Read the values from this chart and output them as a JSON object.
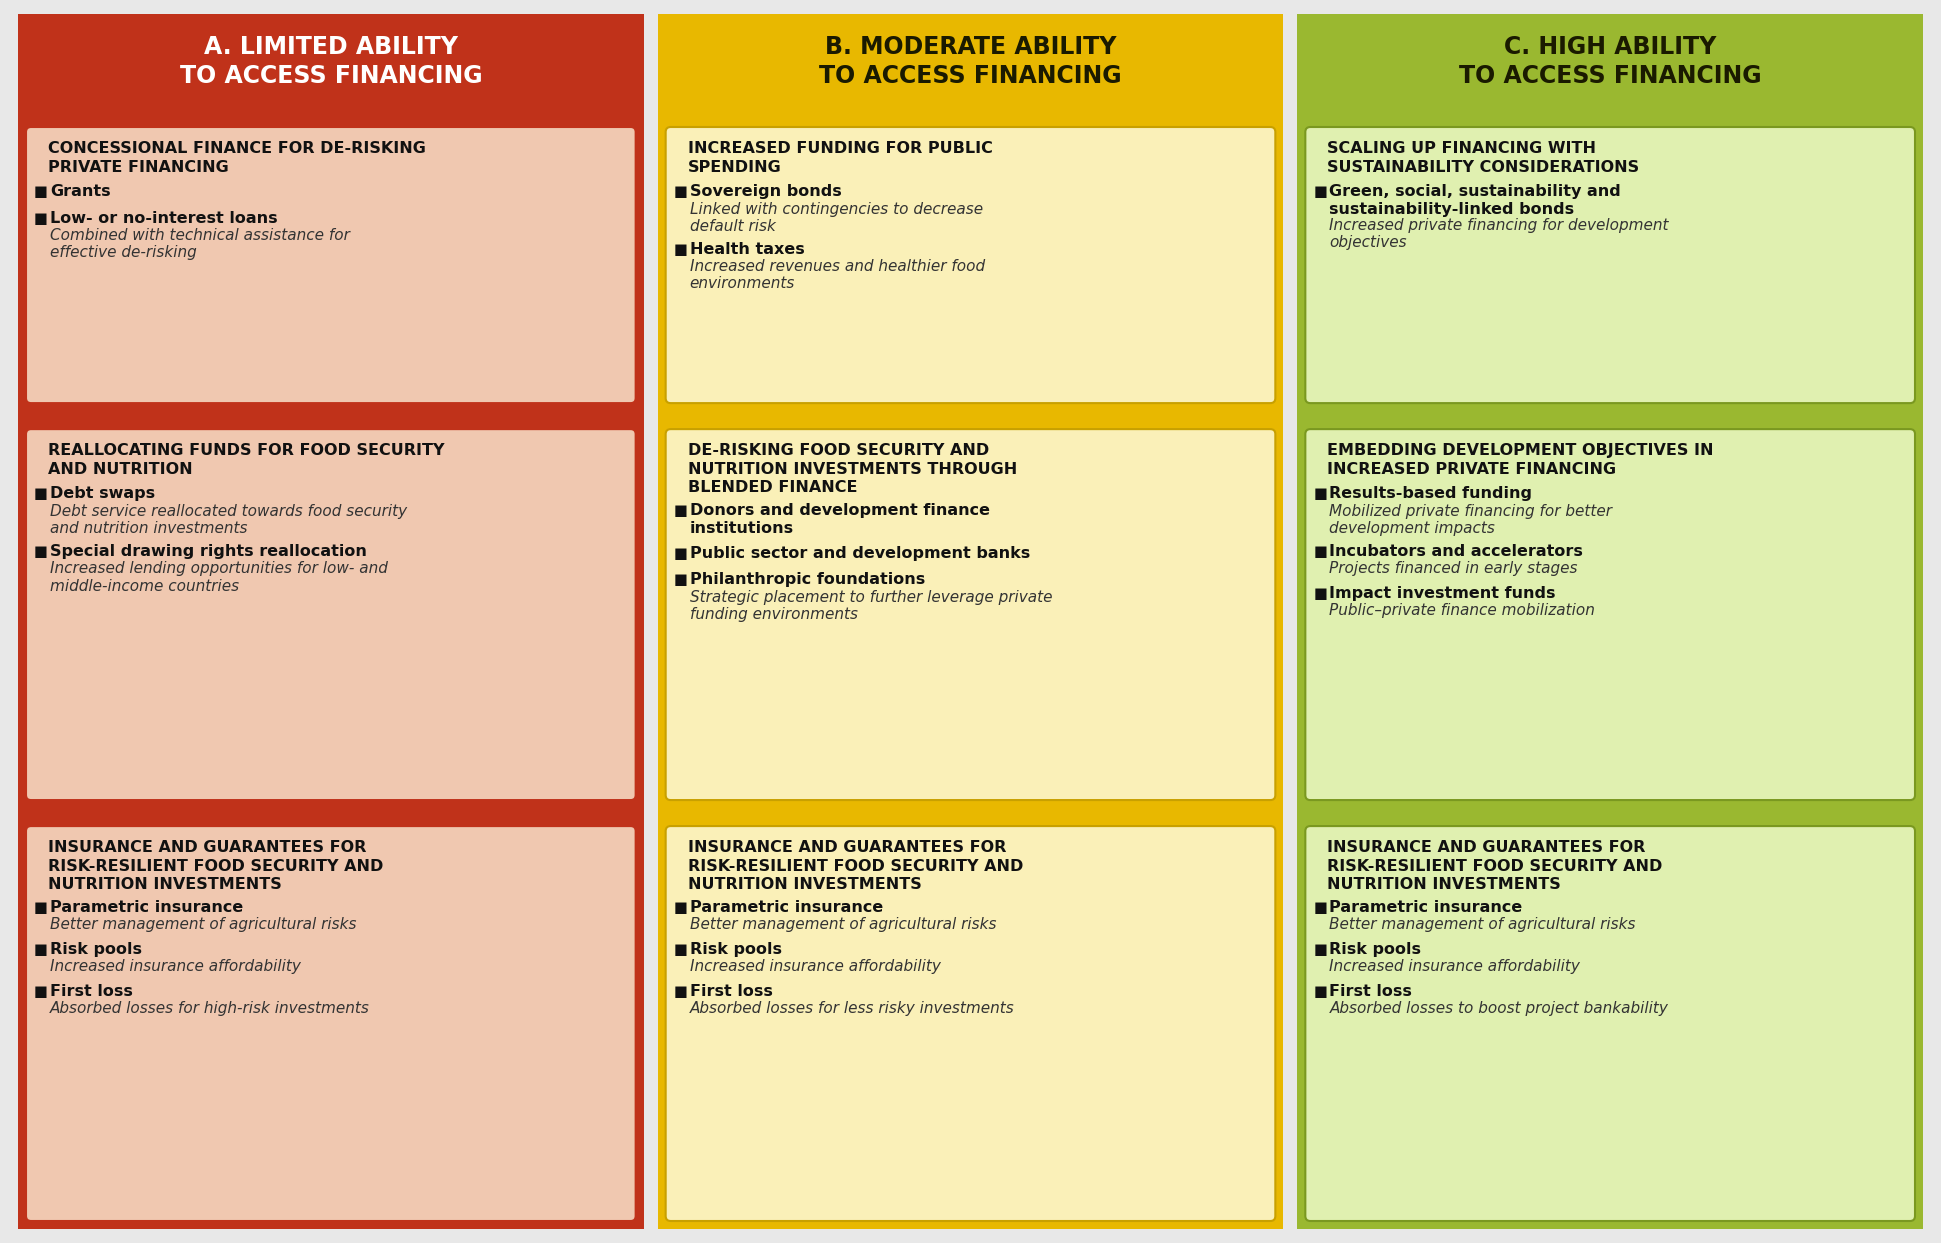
{
  "bg_color": "#e8e8e8",
  "columns": [
    {
      "header_text": "A. LIMITED ABILITY\nTO ACCESS FINANCING",
      "header_bg": "#c0321a",
      "header_text_color": "#ffffff",
      "col_bg": "#c0321a",
      "box_bg": "#f0c8b0",
      "box_border": "#c0321a",
      "cells": [
        {
          "title": "CONCESSIONAL FINANCE FOR DE-RISKING\nPRIVATE FINANCING",
          "items": [
            {
              "bold": "Grants",
              "italic": ""
            },
            {
              "bold": "Low- or no-interest loans",
              "italic": "Combined with technical assistance for\neffective de-risking"
            }
          ]
        },
        {
          "title": "REALLOCATING FUNDS FOR FOOD SECURITY\nAND NUTRITION",
          "items": [
            {
              "bold": "Debt swaps",
              "italic": "Debt service reallocated towards food security\nand nutrition investments"
            },
            {
              "bold": "Special drawing rights reallocation",
              "italic": "Increased lending opportunities for low- and\nmiddle-income countries"
            }
          ]
        },
        {
          "title": "INSURANCE AND GUARANTEES FOR\nRISK-RESILIENT FOOD SECURITY AND\nNUTRITION INVESTMENTS",
          "items": [
            {
              "bold": "Parametric insurance",
              "italic": "Better management of agricultural risks"
            },
            {
              "bold": "Risk pools",
              "italic": "Increased insurance affordability"
            },
            {
              "bold": "First loss",
              "italic": "Absorbed losses for high-risk investments"
            }
          ]
        }
      ]
    },
    {
      "header_text": "B. MODERATE ABILITY\nTO ACCESS FINANCING",
      "header_bg": "#e8b800",
      "header_text_color": "#1a1a00",
      "col_bg": "#e8b800",
      "box_bg": "#faf0b8",
      "box_border": "#c8a000",
      "cells": [
        {
          "title": "INCREASED FUNDING FOR PUBLIC\nSPENDING",
          "items": [
            {
              "bold": "Sovereign bonds",
              "italic": "Linked with contingencies to decrease\ndefault risk"
            },
            {
              "bold": "Health taxes",
              "italic": "Increased revenues and healthier food\nenvironments"
            }
          ]
        },
        {
          "title": "DE-RISKING FOOD SECURITY AND\nNUTRITION INVESTMENTS THROUGH\nBLENDED FINANCE",
          "items": [
            {
              "bold": "Donors and development finance\ninstitutions",
              "italic": ""
            },
            {
              "bold": "Public sector and development banks",
              "italic": ""
            },
            {
              "bold": "Philanthropic foundations",
              "italic": "Strategic placement to further leverage private\nfunding environments"
            }
          ]
        },
        {
          "title": "INSURANCE AND GUARANTEES FOR\nRISK-RESILIENT FOOD SECURITY AND\nNUTRITION INVESTMENTS",
          "items": [
            {
              "bold": "Parametric insurance",
              "italic": "Better management of agricultural risks"
            },
            {
              "bold": "Risk pools",
              "italic": "Increased insurance affordability"
            },
            {
              "bold": "First loss",
              "italic": "Absorbed losses for less risky investments"
            }
          ]
        }
      ]
    },
    {
      "header_text": "C. HIGH ABILITY\nTO ACCESS FINANCING",
      "header_bg": "#9ab830",
      "header_text_color": "#1a1a00",
      "col_bg": "#9ab830",
      "box_bg": "#e0f0b0",
      "box_border": "#7a9820",
      "cells": [
        {
          "title": "SCALING UP FINANCING WITH\nSUSTAINABILITY CONSIDERATIONS",
          "items": [
            {
              "bold": "Green, social, sustainability and\nsustainability-linked bonds",
              "italic": "Increased private financing for development\nobjectives"
            }
          ]
        },
        {
          "title": "EMBEDDING DEVELOPMENT OBJECTIVES IN\nINCREASED PRIVATE FINANCING",
          "items": [
            {
              "bold": "Results-based funding",
              "italic": "Mobilized private financing for better\ndevelopment impacts"
            },
            {
              "bold": "Incubators and accelerators",
              "italic": "Projects financed in early stages"
            },
            {
              "bold": "Impact investment funds",
              "italic": "Public–private finance mobilization"
            }
          ]
        },
        {
          "title": "INSURANCE AND GUARANTEES FOR\nRISK-RESILIENT FOOD SECURITY AND\nNUTRITION INVESTMENTS",
          "items": [
            {
              "bold": "Parametric insurance",
              "italic": "Better management of agricultural risks"
            },
            {
              "bold": "Risk pools",
              "italic": "Increased insurance affordability"
            },
            {
              "bold": "First loss",
              "italic": "Absorbed losses to boost project bankability"
            }
          ]
        }
      ]
    }
  ]
}
